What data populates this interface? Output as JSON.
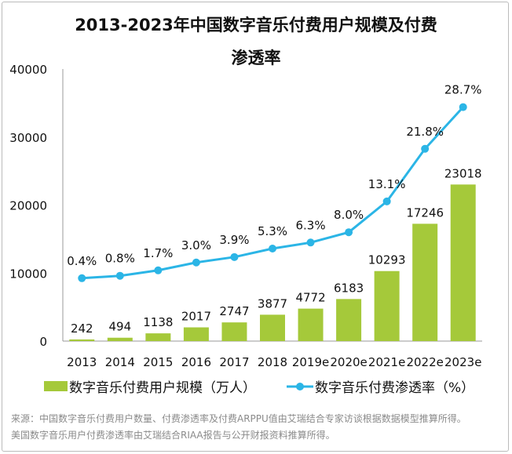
{
  "chart_data": {
    "type": "bar+line",
    "title": "2013-2023年中国数字音乐付费用户规模及付费渗透率",
    "title_line1": "2013-2023年中国数字音乐付费用户规模及付费",
    "title_line2": "渗透率",
    "categories": [
      "2013",
      "2014",
      "2015",
      "2016",
      "2017",
      "2018",
      "2019e",
      "2020e",
      "2021e",
      "2022e",
      "2023e"
    ],
    "series": [
      {
        "name": "数字音乐付费用户规模（万人）",
        "type": "bar",
        "axis": "primary",
        "color": "#a5c93a",
        "values": [
          242,
          494,
          1138,
          2017,
          2747,
          3877,
          4772,
          6183,
          10293,
          17246,
          23018
        ],
        "labels": [
          "242",
          "494",
          "1138",
          "2017",
          "2747",
          "3877",
          "4772",
          "6183",
          "10293",
          "17246",
          "23018"
        ]
      },
      {
        "name": "数字音乐付费渗透率（%）",
        "type": "line",
        "axis": "secondary",
        "color": "#2bb5e6",
        "values": [
          0.4,
          0.8,
          1.7,
          3.0,
          3.9,
          5.3,
          6.3,
          8.0,
          13.1,
          21.8,
          28.7
        ],
        "labels": [
          "0.4%",
          "0.8%",
          "1.7%",
          "3.0%",
          "3.9%",
          "5.3%",
          "6.3%",
          "8.0%",
          "13.1%",
          "21.8%",
          "28.7%"
        ]
      }
    ],
    "ylim": [
      0,
      40000
    ],
    "yticks": [
      "0",
      "10000",
      "20000",
      "30000",
      "40000"
    ],
    "y2lim": [
      -10,
      35
    ],
    "grid": false,
    "legend": "bottom"
  },
  "footer": {
    "line1": "来源：中国数字音乐付费用户数量、付费渗透率及付费ARPPU值由艾瑞结合专家访谈根据数据模型推算所得。",
    "line2": "美国数字音乐用户付费渗透率由艾瑞结合RIAA报告与公开财报资料推算所得。"
  }
}
